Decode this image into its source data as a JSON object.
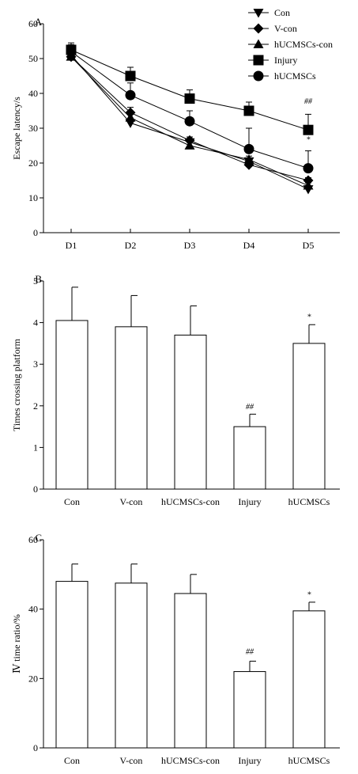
{
  "chart_data": [
    {
      "panel": "A",
      "type": "line",
      "ylabel": "Escape latency/s",
      "ylim": [
        0,
        60
      ],
      "yticks": [
        0,
        10,
        20,
        30,
        40,
        50,
        60
      ],
      "categories": [
        "D1",
        "D2",
        "D3",
        "D4",
        "D5"
      ],
      "legend_position": "top-right",
      "series": [
        {
          "name": "Con",
          "marker": "triangle-down",
          "values": [
            51,
            31.5,
            26,
            20.5,
            12.5
          ],
          "errors": [
            1,
            1,
            1,
            1,
            0.5
          ]
        },
        {
          "name": "V-con",
          "marker": "diamond",
          "values": [
            50.5,
            34.5,
            26.5,
            19.5,
            15
          ],
          "errors": [
            1,
            1.5,
            1,
            1,
            0.8
          ]
        },
        {
          "name": "hUCMSCs-con",
          "marker": "triangle-up",
          "values": [
            50.5,
            33,
            25,
            21,
            13.5
          ],
          "errors": [
            1,
            1,
            1,
            1,
            0.8
          ]
        },
        {
          "name": "Injury",
          "marker": "square",
          "values": [
            52.5,
            45,
            38.5,
            35,
            29.5
          ],
          "errors": [
            2,
            2.5,
            2.5,
            2.5,
            4.5
          ]
        },
        {
          "name": "hUCMSCs",
          "marker": "circle",
          "values": [
            52,
            39.5,
            32,
            24,
            18.5
          ],
          "errors": [
            2,
            3.5,
            3,
            6,
            5
          ]
        }
      ],
      "annotations": [
        {
          "text": "##",
          "category": "D5",
          "value": 37
        },
        {
          "text": "*",
          "category": "D5",
          "value": 26
        }
      ]
    },
    {
      "panel": "B",
      "type": "bar",
      "ylabel": "Times crossing platform",
      "ylim": [
        0,
        5
      ],
      "yticks": [
        0,
        1,
        2,
        3,
        4,
        5
      ],
      "categories": [
        "Con",
        "V-con",
        "hUCMSCs-con",
        "Injury",
        "hUCMSCs"
      ],
      "values": [
        4.05,
        3.9,
        3.7,
        1.5,
        3.5
      ],
      "errors": [
        0.8,
        0.75,
        0.7,
        0.3,
        0.45
      ],
      "annotations": [
        {
          "text": "##",
          "category": "Injury",
          "value": 1.92
        },
        {
          "text": "*",
          "category": "hUCMSCs",
          "value": 4.08
        }
      ]
    },
    {
      "panel": "C",
      "type": "bar",
      "ylabel": "Ⅳ time ratio/%",
      "ylim": [
        0,
        60
      ],
      "yticks": [
        0,
        20,
        40,
        60
      ],
      "categories": [
        "Con",
        "V-con",
        "hUCMSCs-con",
        "Injury",
        "hUCMSCs"
      ],
      "values": [
        48,
        47.5,
        44.5,
        22,
        39.5
      ],
      "errors": [
        5,
        5.5,
        5.5,
        3,
        2.5
      ],
      "annotations": [
        {
          "text": "##",
          "category": "Injury",
          "value": 27
        },
        {
          "text": "*",
          "category": "hUCMSCs",
          "value": 43.5
        }
      ]
    }
  ]
}
